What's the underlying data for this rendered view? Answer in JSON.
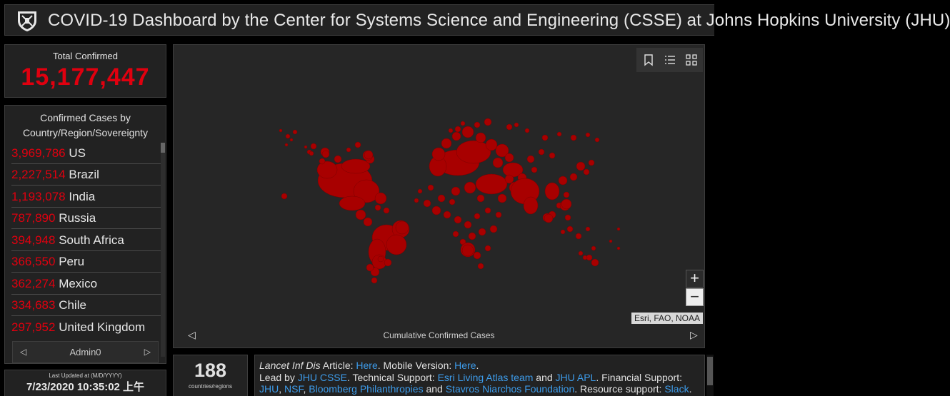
{
  "header": {
    "title": "COVID-19 Dashboard by the Center for Systems Science and Engineering (CSSE) at Johns Hopkins University (JHU)"
  },
  "total": {
    "label": "Total Confirmed",
    "value": "15,177,447"
  },
  "country_list": {
    "title_line1": "Confirmed Cases by",
    "title_line2": "Country/Region/Sovereignty",
    "rows": [
      {
        "count": "3,969,786",
        "name": "US"
      },
      {
        "count": "2,227,514",
        "name": "Brazil"
      },
      {
        "count": "1,193,078",
        "name": "India"
      },
      {
        "count": "787,890",
        "name": "Russia"
      },
      {
        "count": "394,948",
        "name": "South Africa"
      },
      {
        "count": "366,550",
        "name": "Peru"
      },
      {
        "count": "362,274",
        "name": "Mexico"
      },
      {
        "count": "334,683",
        "name": "Chile"
      },
      {
        "count": "297,952",
        "name": "United Kingdom"
      }
    ],
    "footer_label": "Admin0"
  },
  "updated": {
    "label": "Last Updated at (M/D/YYYY)",
    "value": "7/23/2020 10:35:02 上午"
  },
  "map": {
    "caption": "Cumulative Confirmed Cases",
    "attribution": "Esri, FAO, NOAA",
    "zoom_in": "+",
    "zoom_out": "−",
    "tools": [
      "bookmark-icon",
      "list-icon",
      "qr-grid-icon"
    ]
  },
  "count": {
    "value": "188",
    "label": "countries/regions"
  },
  "info": {
    "journal": "Lancet Inf Dis",
    "article_label": " Article: ",
    "article_link": "Here",
    "mobile_label": ". Mobile Version: ",
    "mobile_link": "Here",
    "end_dot": ".",
    "lead_label": "Lead by ",
    "lead_link": "JHU CSSE",
    "tech_label": ". Technical Support: ",
    "tech_link1": "Esri Living Atlas team",
    "and1": " and ",
    "tech_link2": "JHU APL",
    "fin_label": ". Financial Support:",
    "fin_link1": "JHU",
    "comma1": ", ",
    "fin_link2": "NSF",
    "comma2": ", ",
    "fin_link3": "Bloomberg Philanthropies",
    "and2": " and ",
    "fin_link4": "Stavros Niarchos Foundation",
    "res_label": ". Resource support: ",
    "res_link": "Slack",
    "end_dot2": "."
  },
  "colors": {
    "accent_red": "#e0000f",
    "bubble_red": "#a80000",
    "link_blue": "#3d9be9",
    "panel_bg": "#222222"
  }
}
